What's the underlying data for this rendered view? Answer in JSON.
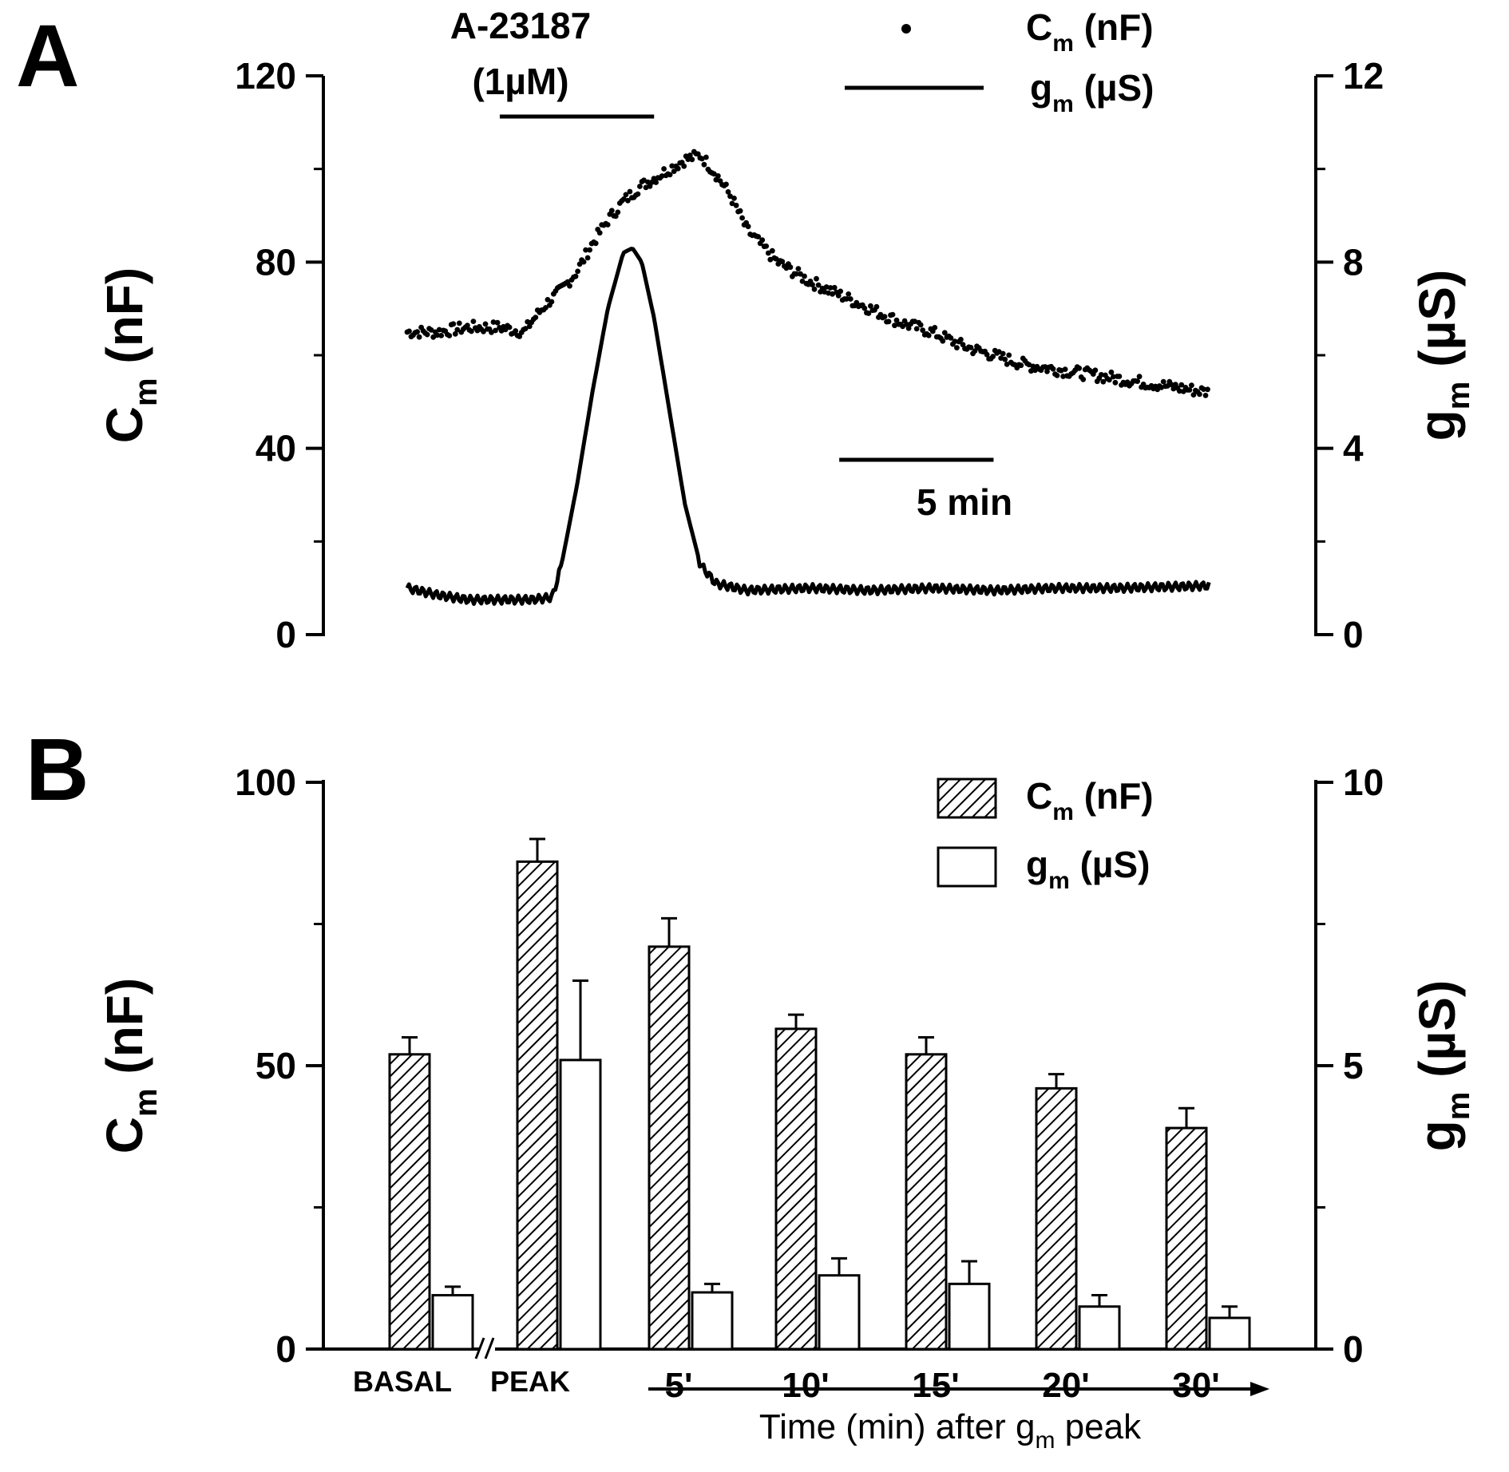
{
  "panels": {
    "a": {
      "letter": "A",
      "drug_line1": "A-23187",
      "drug_line2": "(1µM)",
      "scale_bar_label": "5 min",
      "legend": {
        "cm": {
          "main": "C",
          "sub": "m",
          "unit": " (nF)"
        },
        "gm": {
          "main": "g",
          "sub": "m",
          "unit": " (µS)"
        }
      },
      "left_axis": {
        "main": "C",
        "sub": "m",
        "unit": " (nF)",
        "ticks": [
          "0",
          "40",
          "80",
          "120"
        ]
      },
      "right_axis": {
        "main": "g",
        "sub": "m",
        "unit": " (µS)",
        "ticks": [
          "0",
          "4",
          "8",
          "12"
        ]
      }
    },
    "b": {
      "letter": "B",
      "legend": {
        "cm": {
          "main": "C",
          "sub": "m",
          "unit": " (nF)"
        },
        "gm": {
          "main": "g",
          "sub": "m",
          "unit": " (µS)"
        }
      },
      "left_axis": {
        "main": "C",
        "sub": "m",
        "unit": " (nF)",
        "ticks": [
          "0",
          "50",
          "100"
        ]
      },
      "right_axis": {
        "main": "g",
        "sub": "m",
        "unit": " (µS)",
        "ticks": [
          "0",
          "5",
          "10"
        ]
      },
      "x_title": {
        "pre": "Time (min) after g",
        "sub": "m",
        "post": " peak"
      }
    }
  },
  "chart_data": [
    {
      "type": "scatter",
      "panel": "A",
      "x_unit": "min",
      "xlim": [
        -3,
        23
      ],
      "ylim": [
        0,
        120
      ],
      "y2lim": [
        0,
        12
      ],
      "drug_application_min": [
        0,
        5
      ],
      "scale_bar_min": 5,
      "series": [
        {
          "name": "Cm (nF)",
          "axis": "left",
          "style": "dots",
          "points": [
            [
              -3,
              65
            ],
            [
              -2,
              65
            ],
            [
              -1,
              66
            ],
            [
              0,
              66
            ],
            [
              0.8,
              65
            ],
            [
              1,
              67
            ],
            [
              1.5,
              71
            ],
            [
              2,
              74
            ],
            [
              2.5,
              78
            ],
            [
              3,
              84
            ],
            [
              3.5,
              89
            ],
            [
              4,
              93
            ],
            [
              4.5,
              96
            ],
            [
              5,
              98
            ],
            [
              6,
              102
            ],
            [
              6.5,
              103
            ],
            [
              7,
              99
            ],
            [
              7.5,
              94
            ],
            [
              8,
              87
            ],
            [
              9,
              80
            ],
            [
              10,
              76
            ],
            [
              11,
              73
            ],
            [
              12,
              70
            ],
            [
              13,
              67
            ],
            [
              14,
              65
            ],
            [
              15,
              62
            ],
            [
              16,
              60
            ],
            [
              17,
              58
            ],
            [
              18,
              57
            ],
            [
              19,
              56
            ],
            [
              20,
              55
            ],
            [
              21,
              54
            ],
            [
              22,
              53
            ],
            [
              23,
              52
            ]
          ]
        },
        {
          "name": "gm (µS)",
          "axis": "right",
          "style": "line",
          "points": [
            [
              -3,
              1.0
            ],
            [
              -2,
              0.85
            ],
            [
              -1,
              0.75
            ],
            [
              0,
              0.75
            ],
            [
              1,
              0.75
            ],
            [
              1.7,
              0.8
            ],
            [
              2,
              1.5
            ],
            [
              2.5,
              3.2
            ],
            [
              3,
              5.2
            ],
            [
              3.5,
              7.0
            ],
            [
              4,
              8.2
            ],
            [
              4.3,
              8.3
            ],
            [
              4.6,
              8.0
            ],
            [
              5,
              6.8
            ],
            [
              5.5,
              4.8
            ],
            [
              6,
              2.8
            ],
            [
              6.5,
              1.5
            ],
            [
              7,
              1.1
            ],
            [
              8,
              0.95
            ],
            [
              10,
              1.0
            ],
            [
              12,
              0.95
            ],
            [
              14,
              1.0
            ],
            [
              16,
              0.95
            ],
            [
              18,
              1.0
            ],
            [
              20,
              1.0
            ],
            [
              23,
              1.05
            ]
          ]
        }
      ]
    },
    {
      "type": "bar",
      "panel": "B",
      "categories": [
        "BASAL",
        "PEAK",
        "5'",
        "10'",
        "15'",
        "20'",
        "30'"
      ],
      "ylim": [
        0,
        100
      ],
      "y2lim": [
        0,
        10
      ],
      "series": [
        {
          "name": "Cm (nF)",
          "axis": "left",
          "fill": "hatched",
          "values": [
            52,
            86,
            71,
            56.5,
            52,
            46,
            39
          ],
          "errors": [
            3,
            4,
            5,
            2.5,
            3,
            2.5,
            3.5
          ]
        },
        {
          "name": "gm (µS)",
          "axis": "right",
          "fill": "white",
          "values": [
            0.95,
            5.1,
            1.0,
            1.3,
            1.15,
            0.75,
            0.55
          ],
          "errors": [
            0.15,
            1.4,
            0.15,
            0.3,
            0.4,
            0.2,
            0.2
          ]
        }
      ]
    }
  ]
}
